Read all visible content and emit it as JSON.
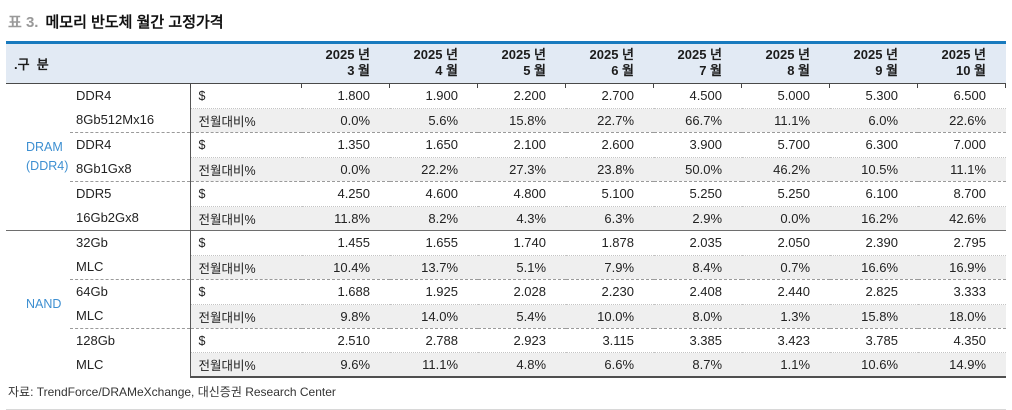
{
  "title": {
    "prefix": "표 3.",
    "text": "메모리 반도체 월간 고정가격"
  },
  "table": {
    "category_header": ".구  분",
    "months": [
      {
        "year": "2025 년",
        "month": "3 월"
      },
      {
        "year": "2025 년",
        "month": "4 월"
      },
      {
        "year": "2025 년",
        "month": "5 월"
      },
      {
        "year": "2025 년",
        "month": "6 월"
      },
      {
        "year": "2025 년",
        "month": "7 월"
      },
      {
        "year": "2025 년",
        "month": "8 월"
      },
      {
        "year": "2025 년",
        "month": "9 월"
      },
      {
        "year": "2025 년",
        "month": "10 월"
      }
    ],
    "metric_labels": {
      "dollar": "$",
      "mom": "전월대비%"
    },
    "sections": [
      {
        "name_lines": [
          "DRAM",
          "(DDR4)"
        ],
        "products": [
          {
            "name_lines": [
              "DDR4",
              "8Gb512Mx16"
            ],
            "dollar": [
              "1.800",
              "1.900",
              "2.200",
              "2.700",
              "4.500",
              "5.000",
              "5.300",
              "6.500"
            ],
            "mom": [
              "0.0%",
              "5.6%",
              "15.8%",
              "22.7%",
              "66.7%",
              "11.1%",
              "6.0%",
              "22.6%"
            ]
          },
          {
            "name_lines": [
              "DDR4",
              "8Gb1Gx8"
            ],
            "dollar": [
              "1.350",
              "1.650",
              "2.100",
              "2.600",
              "3.900",
              "5.700",
              "6.300",
              "7.000"
            ],
            "mom": [
              "0.0%",
              "22.2%",
              "27.3%",
              "23.8%",
              "50.0%",
              "46.2%",
              "10.5%",
              "11.1%"
            ]
          },
          {
            "name_lines": [
              "DDR5",
              "16Gb2Gx8"
            ],
            "dollar": [
              "4.250",
              "4.600",
              "4.800",
              "5.100",
              "5.250",
              "5.250",
              "6.100",
              "8.700"
            ],
            "mom": [
              "11.8%",
              "8.2%",
              "4.3%",
              "6.3%",
              "2.9%",
              "0.0%",
              "16.2%",
              "42.6%"
            ]
          }
        ]
      },
      {
        "name_lines": [
          "NAND"
        ],
        "products": [
          {
            "name_lines": [
              "32Gb",
              "MLC"
            ],
            "dollar": [
              "1.455",
              "1.655",
              "1.740",
              "1.878",
              "2.035",
              "2.050",
              "2.390",
              "2.795"
            ],
            "mom": [
              "10.4%",
              "13.7%",
              "5.1%",
              "7.9%",
              "8.4%",
              "0.7%",
              "16.6%",
              "16.9%"
            ]
          },
          {
            "name_lines": [
              "64Gb",
              "MLC"
            ],
            "dollar": [
              "1.688",
              "1.925",
              "2.028",
              "2.230",
              "2.408",
              "2.440",
              "2.825",
              "3.333"
            ],
            "mom": [
              "9.8%",
              "14.0%",
              "5.4%",
              "10.0%",
              "8.0%",
              "1.3%",
              "15.8%",
              "18.0%"
            ]
          },
          {
            "name_lines": [
              "128Gb",
              "MLC"
            ],
            "dollar": [
              "2.510",
              "2.788",
              "2.923",
              "3.115",
              "3.385",
              "3.423",
              "3.785",
              "4.350"
            ],
            "mom": [
              "9.6%",
              "11.1%",
              "4.8%",
              "6.6%",
              "8.7%",
              "1.1%",
              "10.6%",
              "14.9%"
            ]
          }
        ]
      }
    ]
  },
  "footer": {
    "source": "자료: TrendForce/DRAMeXchange, 대신증권 Research Center"
  },
  "colors": {
    "accent_blue": "#187abe",
    "header_bg": "#e2eaf4",
    "section_text": "#3d8fd1",
    "stripe_gray": "#efefef"
  }
}
